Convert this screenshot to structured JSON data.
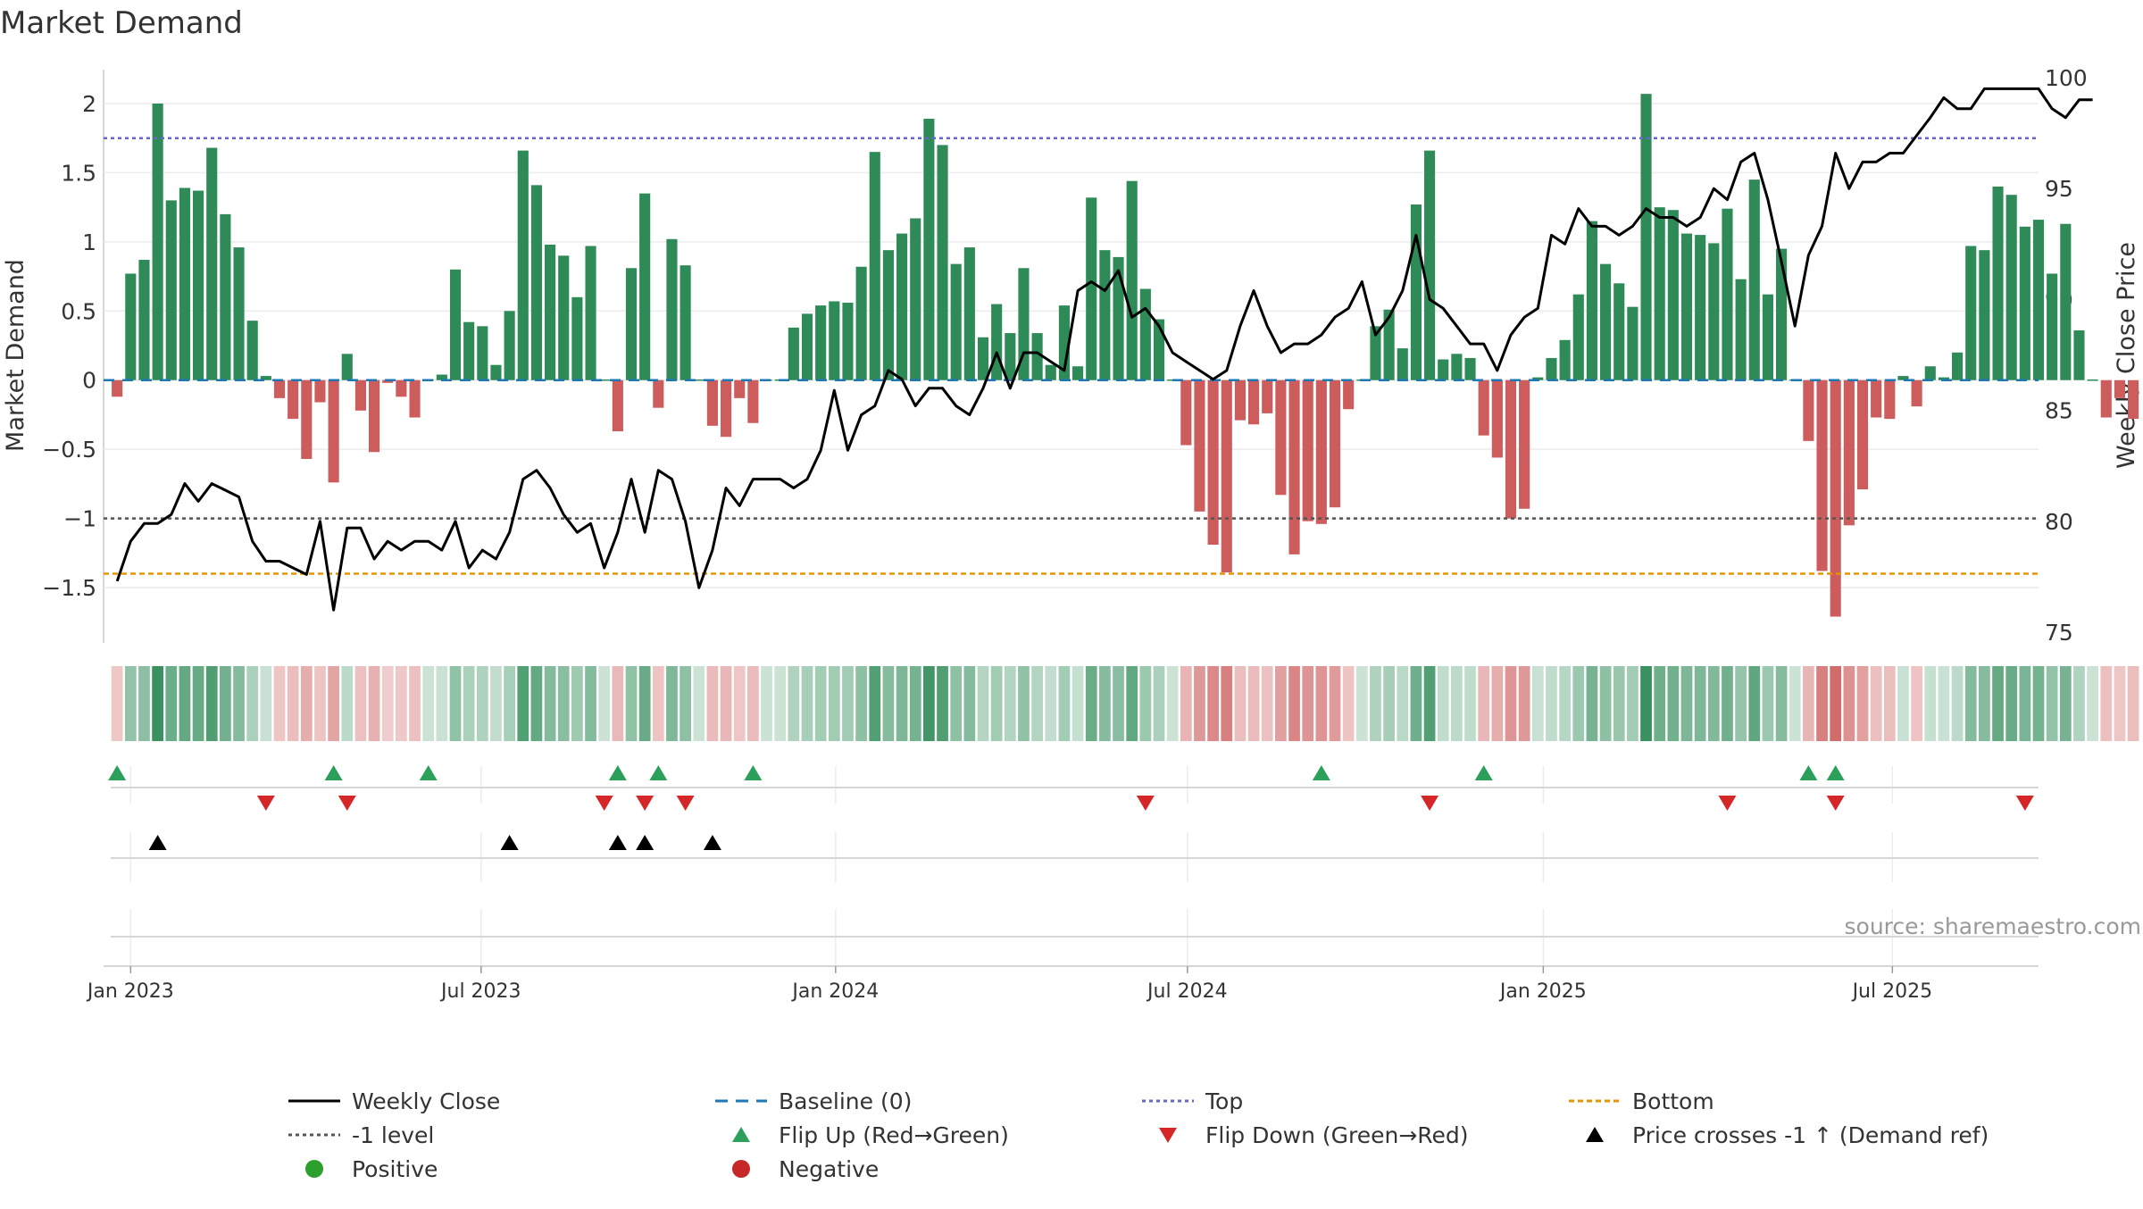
{
  "chart_data": {
    "type": "bar",
    "title": "Market Demand",
    "ylabel": "Market Demand",
    "y2label": "Weekly Close Price",
    "ylim": [
      -1.9,
      2.2
    ],
    "y2lim": [
      75,
      100
    ],
    "yticks": [
      -1.5,
      -1,
      -0.5,
      0,
      0.5,
      1,
      1.5,
      2
    ],
    "ytick_labels": [
      "−1.5",
      "−1",
      "−0.5",
      "0",
      "0.5",
      "1",
      "1.5",
      "2"
    ],
    "y2ticks": [
      75,
      80,
      85,
      90,
      95,
      100
    ],
    "y2tick_labels": [
      "75",
      "80",
      "85",
      "90",
      "95",
      "100"
    ],
    "x_start_week": -1,
    "x_end_week": 142,
    "xticks": [
      {
        "week": 1.0,
        "label": "Jan 2023"
      },
      {
        "week": 26.9,
        "label": "Jul 2023"
      },
      {
        "week": 53.1,
        "label": "Jan 2024"
      },
      {
        "week": 79.1,
        "label": "Jul 2024"
      },
      {
        "week": 105.4,
        "label": "Jan 2025"
      },
      {
        "week": 131.2,
        "label": "Jul 2025"
      }
    ],
    "reference_lines": {
      "top": 1.75,
      "minus_one": -1,
      "bottom": -1.4,
      "baseline": 0
    },
    "demand": [
      -0.12,
      0.77,
      0.87,
      2.0,
      1.3,
      1.39,
      1.37,
      1.68,
      1.2,
      0.96,
      0.43,
      0.03,
      -0.13,
      -0.28,
      -0.57,
      -0.16,
      -0.74,
      0.19,
      -0.22,
      -0.52,
      -0.02,
      -0.12,
      -0.27,
      0.0,
      0.04,
      0.8,
      0.42,
      0.39,
      0.11,
      0.5,
      1.66,
      1.41,
      0.98,
      0.9,
      0.6,
      0.97,
      0.0,
      -0.37,
      0.81,
      1.35,
      -0.2,
      1.02,
      0.83,
      0.0,
      -0.33,
      -0.41,
      -0.13,
      -0.31,
      0.0,
      0.0,
      0.38,
      0.48,
      0.54,
      0.57,
      0.56,
      0.82,
      1.65,
      0.94,
      1.06,
      1.17,
      1.89,
      1.7,
      0.84,
      0.96,
      0.31,
      0.55,
      0.34,
      0.81,
      0.34,
      0.11,
      0.54,
      0.1,
      1.32,
      0.94,
      0.89,
      1.44,
      0.66,
      0.44,
      0.0,
      -0.47,
      -0.95,
      -1.19,
      -1.39,
      -0.29,
      -0.32,
      -0.24,
      -0.83,
      -1.26,
      -1.02,
      -1.04,
      -0.92,
      -0.21,
      0.0,
      0.39,
      0.51,
      0.23,
      1.27,
      1.66,
      0.15,
      0.19,
      0.16,
      -0.4,
      -0.56,
      -1.0,
      -0.93,
      0.02,
      0.16,
      0.29,
      0.62,
      1.15,
      0.84,
      0.7,
      0.53,
      2.07,
      1.25,
      1.23,
      1.06,
      1.05,
      0.99,
      1.24,
      0.73,
      1.45,
      0.62,
      0.95,
      0.0,
      -0.44,
      -1.38,
      -1.71,
      -1.05,
      -0.79,
      -0.27,
      -0.28,
      0.03,
      -0.19,
      0.1,
      0.02,
      0.2,
      0.97,
      0.94,
      1.4,
      1.34,
      1.11,
      1.16,
      0.77,
      1.13,
      0.36,
      0.0,
      -0.27,
      -0.13,
      -0.28
    ],
    "price": [
      77.3,
      79.1,
      79.9,
      79.9,
      80.3,
      81.7,
      80.9,
      81.7,
      81.4,
      81.1,
      79.1,
      78.2,
      78.2,
      77.9,
      77.6,
      80.0,
      76.0,
      79.7,
      79.7,
      78.3,
      79.1,
      78.7,
      79.1,
      79.1,
      78.7,
      80.0,
      77.9,
      78.7,
      78.3,
      79.5,
      81.9,
      82.3,
      81.5,
      80.3,
      79.5,
      79.9,
      77.9,
      79.5,
      81.9,
      79.5,
      82.3,
      81.9,
      80.0,
      77.0,
      78.7,
      81.5,
      80.7,
      81.9,
      81.9,
      81.9,
      81.5,
      81.9,
      83.2,
      85.9,
      83.2,
      84.8,
      85.2,
      86.8,
      86.4,
      85.2,
      86.0,
      86.0,
      85.2,
      84.8,
      86.0,
      87.6,
      86.0,
      87.6,
      87.6,
      87.2,
      86.8,
      90.4,
      90.8,
      90.4,
      91.3,
      89.2,
      89.6,
      88.8,
      87.6,
      87.2,
      86.8,
      86.4,
      86.8,
      88.8,
      90.4,
      88.8,
      87.6,
      88.0,
      88.0,
      88.4,
      89.2,
      89.6,
      90.8,
      88.4,
      89.2,
      90.4,
      92.9,
      90.0,
      89.6,
      88.8,
      88.0,
      88.0,
      86.8,
      88.4,
      89.2,
      89.6,
      92.9,
      92.5,
      94.1,
      93.3,
      93.3,
      92.9,
      93.3,
      94.1,
      93.7,
      93.7,
      93.3,
      93.7,
      95.0,
      94.5,
      96.2,
      96.6,
      94.5,
      91.7,
      88.8,
      92.0,
      93.3,
      96.6,
      95.0,
      96.2,
      96.2,
      96.6,
      96.6,
      97.4,
      98.2,
      99.1,
      98.6,
      98.6,
      99.5,
      99.5,
      99.5,
      99.5,
      99.5,
      98.6,
      98.2,
      99.0,
      99.0
    ],
    "flip_up_weeks": [
      0,
      16,
      23,
      37,
      40,
      47,
      89,
      101,
      125,
      127
    ],
    "flip_down_weeks": [
      11,
      17,
      36,
      39,
      42,
      76,
      97,
      119,
      127,
      141
    ],
    "price_cross_weeks": [
      3,
      29,
      37,
      39,
      44
    ],
    "legend": [
      {
        "label": "Weekly Close",
        "color": "#000000"
      },
      {
        "label": "Baseline (0)",
        "color": "#1f77b4"
      },
      {
        "label": "Top",
        "color": "#6666cc"
      },
      {
        "label": "Bottom",
        "color": "#e69500"
      },
      {
        "label": "-1 level",
        "color": "#555555"
      },
      {
        "label": "Flip Up (Red→Green)",
        "color": "#2ca05a"
      },
      {
        "label": "Flip Down (Green→Red)",
        "color": "#d62728"
      },
      {
        "label": "Price crosses -1 ↑ (Demand ref)",
        "color": "#000000"
      },
      {
        "label": "Positive",
        "color": "#2ca02c"
      },
      {
        "label": "Negative",
        "color": "#c62828"
      }
    ],
    "legend_placement": "bottom",
    "source": "source: sharemaestro.com",
    "colors": {
      "positive": "#2e8b57",
      "negative": "#cd5c5c",
      "price": "#000000",
      "baseline": "#1f77b4",
      "top": "#6666cc",
      "bottom": "#e69500",
      "minus_one": "#555555",
      "flip_up": "#2ca05a",
      "flip_down": "#d62728",
      "cross": "#000000",
      "positive_dot": "#2ca02c",
      "negative_dot": "#c62828"
    }
  }
}
